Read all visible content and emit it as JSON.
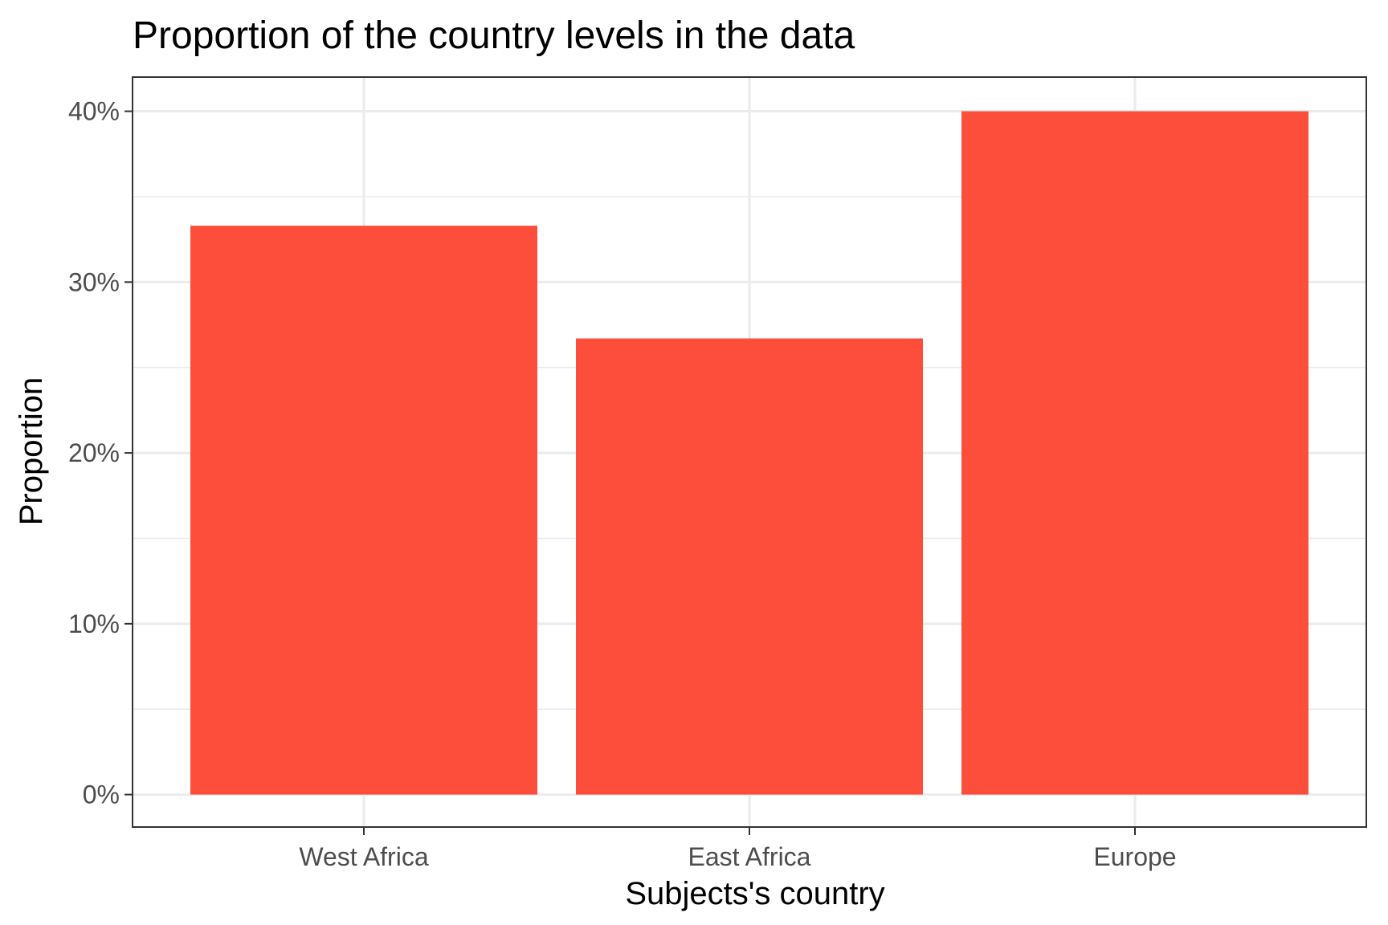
{
  "chart_data": {
    "type": "bar",
    "title": "Proportion of the country levels in the data",
    "xlabel": "Subjects's country",
    "ylabel": "Proportion",
    "categories": [
      "West Africa",
      "East Africa",
      "Europe"
    ],
    "values": [
      33.3,
      26.7,
      40.0
    ],
    "ylim": [
      -1.9,
      42.0
    ],
    "yticks": [
      0,
      10,
      20,
      30,
      40
    ],
    "ytick_labels": [
      "0%",
      "10%",
      "20%",
      "30%",
      "40%"
    ],
    "bar_color": "#FC4E3A",
    "grid": true,
    "legend": "none"
  }
}
